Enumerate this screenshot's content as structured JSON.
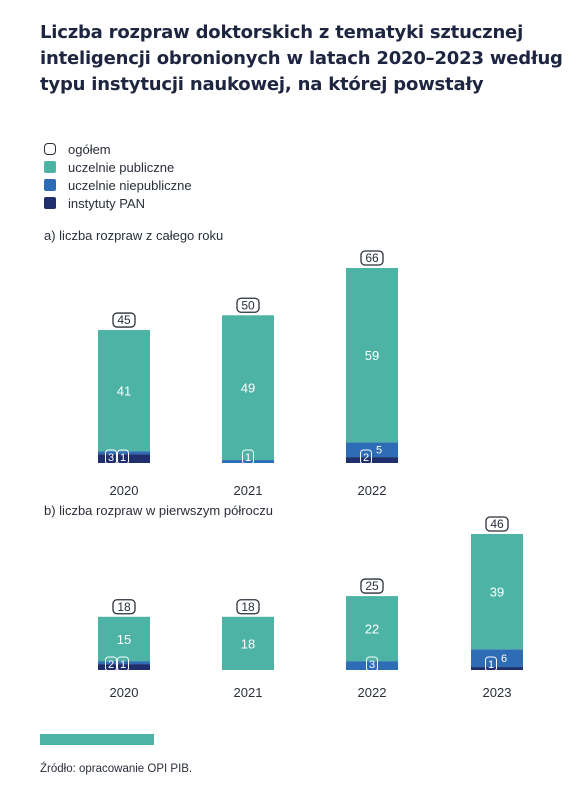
{
  "title": "Liczba rozpraw doktorskich z tematyki sztucznej inteligencji obronionych w latach 2020–2023 według typu instytucji naukowej, na której powstały",
  "legend": [
    {
      "label": "ogółem",
      "kind": "total"
    },
    {
      "label": "uczelnie publiczne",
      "color": "#4db3a4"
    },
    {
      "label": "uczelnie niepubliczne",
      "color": "#2e6db5"
    },
    {
      "label": "instytuty PAN",
      "color": "#1f2f6e"
    }
  ],
  "colors": {
    "public": "#4db3a4",
    "private": "#2e6db5",
    "pan": "#1f2f6e"
  },
  "source": "Źródło: opracowanie OPI PIB.",
  "chart_data": [
    {
      "type": "bar",
      "stacked": true,
      "title": "a) liczba rozpraw z całego roku",
      "categories": [
        "2020",
        "2021",
        "2022"
      ],
      "totals": [
        45,
        50,
        66
      ],
      "series": [
        {
          "name": "instytuty PAN",
          "values": [
            3,
            0,
            2
          ]
        },
        {
          "name": "uczelnie niepubliczne",
          "values": [
            1,
            1,
            5
          ]
        },
        {
          "name": "uczelnie publiczne",
          "values": [
            41,
            49,
            59
          ]
        }
      ]
    },
    {
      "type": "bar",
      "stacked": true,
      "title": "b) liczba rozpraw w pierwszym półroczu",
      "categories": [
        "2020",
        "2021",
        "2022",
        "2023"
      ],
      "totals": [
        18,
        18,
        25,
        46
      ],
      "series": [
        {
          "name": "instytuty PAN",
          "values": [
            2,
            0,
            0,
            1
          ]
        },
        {
          "name": "uczelnie niepubliczne",
          "values": [
            1,
            0,
            3,
            6
          ]
        },
        {
          "name": "uczelnie publiczne",
          "values": [
            15,
            18,
            22,
            39
          ]
        }
      ]
    }
  ]
}
